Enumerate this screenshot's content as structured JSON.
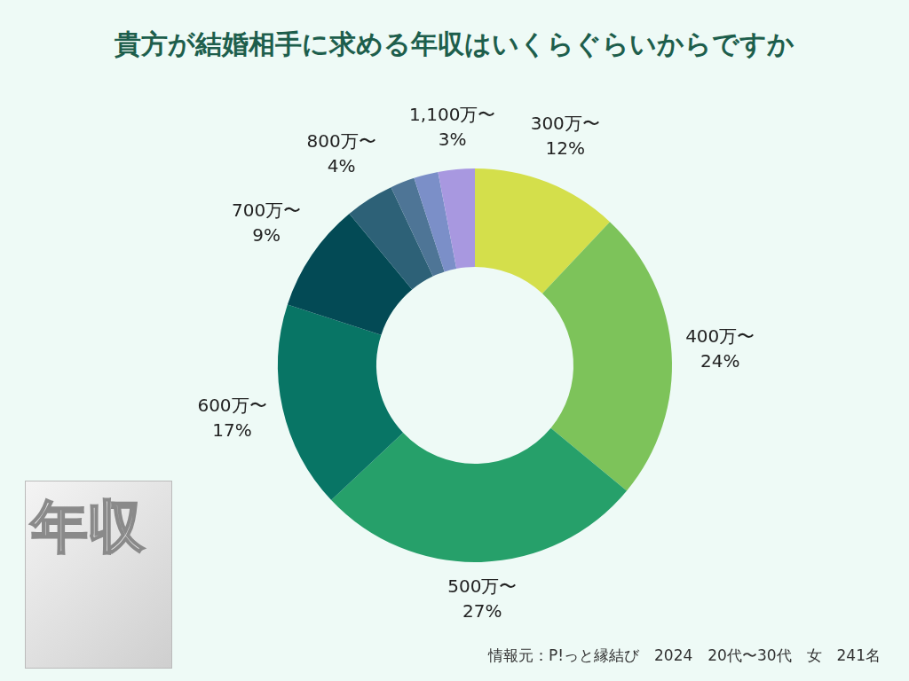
{
  "chart_data": {
    "type": "doughnut",
    "title": "貴方が結婚相手に求める年収はいくらぐらいからですか",
    "categories": [
      "300万〜",
      "400万〜",
      "500万〜",
      "600万〜",
      "700万〜",
      "800万〜",
      null,
      null,
      "1,100万〜"
    ],
    "values": [
      12,
      24,
      27,
      17,
      9,
      4,
      2,
      2,
      3
    ],
    "value_labels": [
      "12%",
      "24%",
      "27%",
      "17%",
      "9%",
      "4%",
      null,
      null,
      "3%"
    ],
    "colors": [
      "#d4df4b",
      "#7dc35a",
      "#26a06a",
      "#087565",
      "#034a55",
      "#2d6177",
      "#4e7596",
      "#7b8fc8",
      "#a898e0"
    ],
    "data_labels": true,
    "source": "情報元：P!っと縁結び　2024　20代〜30代　女　241名",
    "badge": "年収"
  }
}
